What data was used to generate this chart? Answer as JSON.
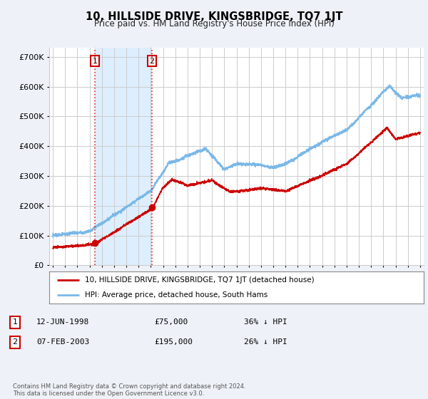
{
  "title": "10, HILLSIDE DRIVE, KINGSBRIDGE, TQ7 1JT",
  "subtitle": "Price paid vs. HM Land Registry's House Price Index (HPI)",
  "ylabel_ticks": [
    "£0",
    "£100K",
    "£200K",
    "£300K",
    "£400K",
    "£500K",
    "£600K",
    "£700K"
  ],
  "ytick_values": [
    0,
    100000,
    200000,
    300000,
    400000,
    500000,
    600000,
    700000
  ],
  "ylim": [
    0,
    730000
  ],
  "xlim_start": 1994.7,
  "xlim_end": 2025.3,
  "hpi_color": "#7ab8e8",
  "price_color": "#cc0000",
  "marker_color": "#cc0000",
  "background_color": "#eef2f8",
  "plot_bg_color": "#ffffff",
  "grid_color": "#cccccc",
  "shade_color": "#ddeeff",
  "legend_label_red": "10, HILLSIDE DRIVE, KINGSBRIDGE, TQ7 1JT (detached house)",
  "legend_label_blue": "HPI: Average price, detached house, South Hams",
  "transaction1_date": 1998.44,
  "transaction1_price": 75000,
  "transaction2_date": 2003.09,
  "transaction2_price": 195000,
  "footer": "Contains HM Land Registry data © Crown copyright and database right 2024.\nThis data is licensed under the Open Government Licence v3.0.",
  "table_rows": [
    [
      "1",
      "12-JUN-1998",
      "£75,000",
      "36% ↓ HPI"
    ],
    [
      "2",
      "07-FEB-2003",
      "£195,000",
      "26% ↓ HPI"
    ]
  ]
}
